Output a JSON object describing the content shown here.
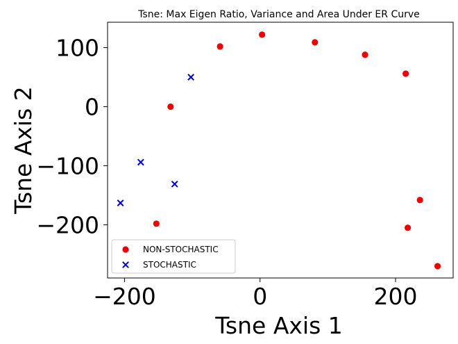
{
  "chart_data": {
    "type": "scatter",
    "title": "Tsne: Max Eigen Ratio, Variance and Area Under ER Curve",
    "xlabel": "Tsne Axis 1",
    "ylabel": "Tsne Axis 2",
    "xlim": [
      -225,
      285
    ],
    "ylim": [
      -290,
      143
    ],
    "xticks": [
      -200,
      0,
      200
    ],
    "yticks": [
      -200,
      -100,
      0,
      100
    ],
    "xtick_labels": [
      "−200",
      "0",
      "200"
    ],
    "ytick_labels": [
      "−200",
      "−100",
      "0",
      "100"
    ],
    "grid": false,
    "legend_position": "lower-left",
    "series": [
      {
        "name": "NON-STOCHASTIC",
        "marker": "circle",
        "color": "#ee0000",
        "points": [
          [
            3,
            122
          ],
          [
            81,
            109
          ],
          [
            -59,
            102
          ],
          [
            155,
            88
          ],
          [
            215,
            56
          ],
          [
            -132,
            0
          ],
          [
            236,
            -158
          ],
          [
            -153,
            -198
          ],
          [
            218,
            -205
          ],
          [
            262,
            -270
          ]
        ]
      },
      {
        "name": "STOCHASTIC",
        "marker": "x",
        "color": "#0000cc",
        "points": [
          [
            -102,
            50
          ],
          [
            -176,
            -94
          ],
          [
            -126,
            -131
          ],
          [
            -206,
            -163
          ]
        ]
      }
    ]
  }
}
